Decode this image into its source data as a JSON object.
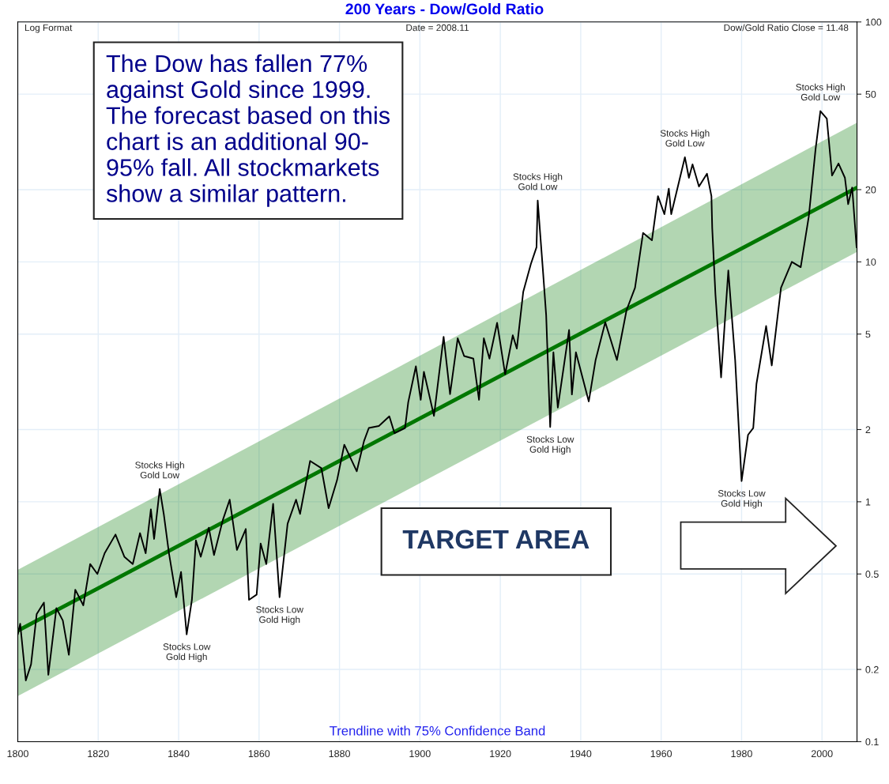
{
  "chart_data": {
    "type": "line",
    "title": "200 Years - Dow/Gold Ratio",
    "log": "y",
    "grid": true,
    "xlim": [
      1800,
      2008.7
    ],
    "xticks": [
      1800,
      1820,
      1840,
      1860,
      1880,
      1900,
      1920,
      1940,
      1960,
      1980,
      2000
    ],
    "ylim": [
      0.1,
      100
    ],
    "yticks": [
      0.1,
      0.2,
      0.5,
      1,
      2,
      5,
      10,
      20,
      50,
      100
    ],
    "series": [
      {
        "color": "#007700",
        "x": [
          1800,
          2008.7
        ],
        "values": [
          0.29,
          20.4
        ],
        "lower": [
          0.155,
          11.0
        ],
        "upper": [
          0.52,
          38.0
        ]
      },
      {
        "color": "#000000",
        "x": [
          1800.0,
          1800.6,
          1802.0,
          1803.3,
          1804.7,
          1806.5,
          1807.6,
          1809.6,
          1811.2,
          1812.7,
          1814.3,
          1816.3,
          1818.0,
          1819.8,
          1821.6,
          1824.3,
          1826.5,
          1828.6,
          1830.4,
          1831.8,
          1833.1,
          1833.9,
          1835.3,
          1836.3,
          1837.6,
          1839.4,
          1840.6,
          1842.0,
          1843.3,
          1844.3,
          1845.5,
          1847.5,
          1848.8,
          1851.0,
          1852.7,
          1854.5,
          1856.7,
          1857.5,
          1859.4,
          1860.4,
          1861.8,
          1863.5,
          1865.1,
          1867.1,
          1869.2,
          1870.2,
          1872.7,
          1875.5,
          1877.3,
          1879.4,
          1881.2,
          1884.3,
          1886.1,
          1887.3,
          1889.8,
          1892.4,
          1893.7,
          1896.3,
          1897.1,
          1899.0,
          1900.2,
          1901.0,
          1903.5,
          1905.9,
          1907.5,
          1909.4,
          1911.0,
          1913.3,
          1914.7,
          1915.9,
          1917.3,
          1919.2,
          1921.2,
          1923.1,
          1924.1,
          1925.7,
          1927.6,
          1929.0,
          1929.3,
          1930.6,
          1931.4,
          1932.4,
          1933.2,
          1934.3,
          1937.1,
          1937.8,
          1938.8,
          1942.0,
          1943.7,
          1946.1,
          1949.0,
          1951.4,
          1953.5,
          1955.5,
          1957.7,
          1959.2,
          1960.8,
          1961.9,
          1962.5,
          1965.9,
          1966.9,
          1967.8,
          1969.4,
          1971.4,
          1972.5,
          1972.7,
          1973.5,
          1974.9,
          1976.7,
          1978.4,
          1980.0,
          1981.6,
          1982.9,
          1983.7,
          1986.1,
          1987.5,
          1989.8,
          1992.5,
          1994.7,
          1996.7,
          1998.4,
          1999.6,
          2001.2,
          2002.5,
          2004.1,
          2005.7,
          2006.5,
          2007.5,
          2008.6
        ],
        "values": [
          0.28,
          0.31,
          0.18,
          0.21,
          0.34,
          0.38,
          0.19,
          0.36,
          0.32,
          0.23,
          0.43,
          0.37,
          0.55,
          0.5,
          0.61,
          0.73,
          0.59,
          0.55,
          0.74,
          0.61,
          0.93,
          0.7,
          1.13,
          0.89,
          0.61,
          0.4,
          0.51,
          0.28,
          0.39,
          0.69,
          0.59,
          0.78,
          0.6,
          0.84,
          1.02,
          0.63,
          0.77,
          0.39,
          0.41,
          0.67,
          0.55,
          0.98,
          0.4,
          0.81,
          1.02,
          0.89,
          1.48,
          1.38,
          0.94,
          1.23,
          1.73,
          1.34,
          1.79,
          2.03,
          2.07,
          2.27,
          1.93,
          2.03,
          2.6,
          3.67,
          2.66,
          3.48,
          2.28,
          4.87,
          2.81,
          4.8,
          4.05,
          3.95,
          2.66,
          4.8,
          3.95,
          5.57,
          3.4,
          4.94,
          4.35,
          7.5,
          9.8,
          11.5,
          18.0,
          9.2,
          6.0,
          2.05,
          4.2,
          2.47,
          5.2,
          2.8,
          4.2,
          2.62,
          3.9,
          5.6,
          3.9,
          6.3,
          7.8,
          13.2,
          12.3,
          18.8,
          15.8,
          20.2,
          15.8,
          27.3,
          22.4,
          25.5,
          20.6,
          23.3,
          18.8,
          13.8,
          7.3,
          3.3,
          9.2,
          3.9,
          1.22,
          1.9,
          2.03,
          3.1,
          5.4,
          3.7,
          7.8,
          10.0,
          9.5,
          15.4,
          29.5,
          42.5,
          39.5,
          22.9,
          25.7,
          22.4,
          17.4,
          20.4,
          11.5
        ]
      }
    ],
    "annotations": [
      "Log Format",
      "Date = 2008.11",
      "Dow/Gold Ratio Close = 11.48",
      "The Dow has fallen 77%\nagainst Gold since 1999.\nThe forecast based on this\nchart is an additional 90-\n95% fall. All stockmarkets\nshow a similar pattern.",
      "TARGET AREA",
      "Trendline with 75% Confidence Band",
      {
        "text": "Stocks High\nGold Low",
        "x": 1835.3,
        "y": 1.13
      },
      {
        "text": "Stocks Low\nGold High",
        "x": 1842.0,
        "y": 0.28
      },
      {
        "text": "Stocks Low\nGold High",
        "x": 1865.1,
        "y": 0.4
      },
      {
        "text": "Stocks High\nGold Low",
        "x": 1929.3,
        "y": 18.0
      },
      {
        "text": "Stocks Low\nGold High",
        "x": 1932.4,
        "y": 2.05
      },
      {
        "text": "Stocks High\nGold Low",
        "x": 1965.9,
        "y": 27.3
      },
      {
        "text": "Stocks Low\nGold High",
        "x": 1980.0,
        "y": 1.22
      },
      {
        "text": "Stocks High\nGold Low",
        "x": 1999.6,
        "y": 42.5
      }
    ]
  }
}
